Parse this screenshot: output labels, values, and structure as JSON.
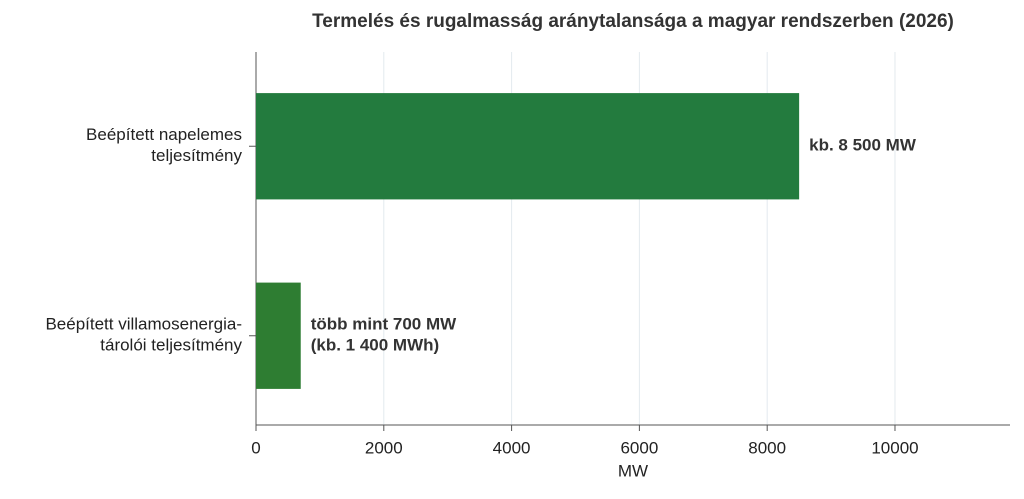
{
  "chart_data": {
    "type": "barh",
    "title": "Termelés és rugalmasság aránytalansága a magyar rendszerben (2026)",
    "xlabel": "MW",
    "categories": [
      [
        "Beépített napelemes",
        "teljesítmény"
      ],
      [
        "Beépített villamosenergia-",
        "tárolói teljesítmény"
      ]
    ],
    "values": [
      8500,
      700
    ],
    "value_labels": [
      [
        "kb. 8 500 MW"
      ],
      [
        "több mint 700 MW",
        "(kb. 1 400 MWh)"
      ]
    ],
    "colors": [
      "#237b3e",
      "#2e7d32"
    ],
    "xlim": [
      0,
      11800
    ],
    "xticks": [
      0,
      2000,
      4000,
      6000,
      8000,
      10000
    ],
    "grid": true
  }
}
